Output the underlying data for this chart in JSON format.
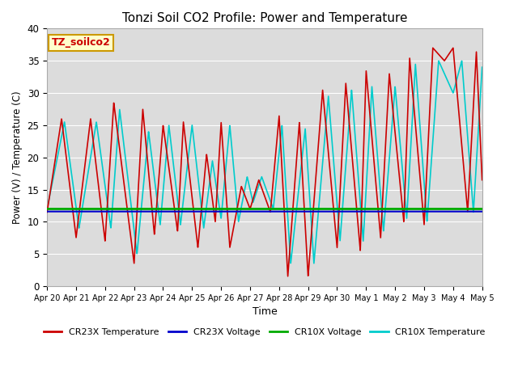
{
  "title": "Tonzi Soil CO2 Profile: Power and Temperature",
  "xlabel": "Time",
  "ylabel": "Power (V) / Temperature (C)",
  "ylim": [
    0,
    40
  ],
  "annotation": "TZ_soilco2",
  "legend": [
    "CR23X Temperature",
    "CR23X Voltage",
    "CR10X Voltage",
    "CR10X Temperature"
  ],
  "colors": [
    "#cc0000",
    "#0000cc",
    "#00aa00",
    "#00cccc"
  ],
  "cr23x_voltage": 11.6,
  "cr10x_voltage": 12.0,
  "background_color": "#dcdcdc",
  "xtick_labels": [
    "Apr 20",
    "Apr 21",
    "Apr 22",
    "Apr 23",
    "Apr 24",
    "Apr 25",
    "Apr 26",
    "Apr 27",
    "Apr 28",
    "Apr 29",
    "Apr 30",
    "May 1",
    "May 2",
    "May 3",
    "May 4",
    "May 5"
  ],
  "num_days": 15,
  "figsize": [
    6.4,
    4.8
  ],
  "dpi": 100
}
